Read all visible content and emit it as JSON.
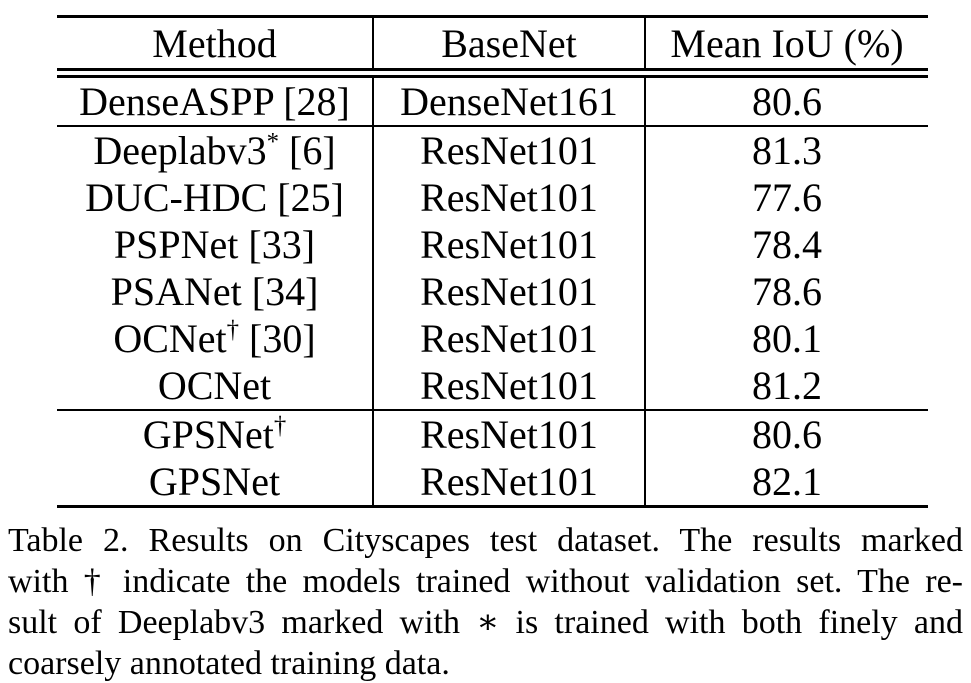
{
  "page": {
    "background": "#ffffff",
    "text_color": "#000000",
    "rule_color": "#000000"
  },
  "table": {
    "headers": [
      "Method",
      "BaseNet",
      "Mean IoU (%)"
    ],
    "groups": [
      [
        {
          "method": "DenseASPP",
          "sup": "",
          "ref": "[28]",
          "basenet": "DenseNet161",
          "iou": "80.6",
          "bold": false
        }
      ],
      [
        {
          "method": "Deeplabv3",
          "sup": "*",
          "ref": "[6]",
          "basenet": "ResNet101",
          "iou": "81.3",
          "bold": false
        },
        {
          "method": "DUC-HDC",
          "sup": "",
          "ref": "[25]",
          "basenet": "ResNet101",
          "iou": "77.6",
          "bold": false
        },
        {
          "method": "PSPNet",
          "sup": "",
          "ref": "[33]",
          "basenet": "ResNet101",
          "iou": "78.4",
          "bold": false
        },
        {
          "method": "PSANet",
          "sup": "",
          "ref": "[34]",
          "basenet": "ResNet101",
          "iou": "78.6",
          "bold": false
        },
        {
          "method": "OCNet",
          "sup": "†",
          "ref": "[30]",
          "basenet": "ResNet101",
          "iou": "80.1",
          "bold": false
        },
        {
          "method": "OCNet",
          "sup": "",
          "ref": "",
          "basenet": "ResNet101",
          "iou": "81.2",
          "bold": false
        }
      ],
      [
        {
          "method": "GPSNet",
          "sup": "†",
          "ref": "",
          "basenet": "ResNet101",
          "iou": "80.6",
          "bold": false
        },
        {
          "method": "GPSNet",
          "sup": "",
          "ref": "",
          "basenet": "ResNet101",
          "iou": "82.1",
          "bold": true
        }
      ]
    ]
  },
  "caption": {
    "lines": [
      "Table 2. Results on Cityscapes test dataset. The results marked",
      "with † indicate the models trained without validation set. The re-",
      "sult of Deeplabv3 marked with ∗ is trained with both finely and",
      "coarsely annotated training data."
    ]
  }
}
